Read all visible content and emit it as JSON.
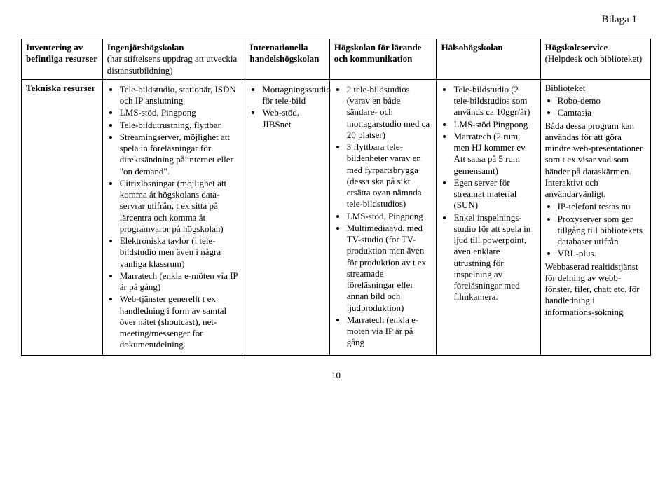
{
  "topRight": "Bilaga 1",
  "pageNumber": "10",
  "headers": {
    "c0a": "Inventering av befintliga resurser",
    "c0b": "Tekniska resurser",
    "c1a": "Ingenjörshögskolan",
    "c1a_sub": "(har stiftelsens uppdrag att utveckla distansutbildning)",
    "c2a": "Internationella handelshögskolan",
    "c3a": "Högskolan för lärande och kommunikation",
    "c4a": "Hälsohögskolan",
    "c5a": "Högskoleservice",
    "c5a_sub": "(Helpdesk och biblioteket)"
  },
  "col1": [
    "Tele-bildstudio, stationär, ISDN och IP anslutning",
    "LMS-stöd, Pingpong",
    "Tele-bildutrustning, flyttbar",
    "Streamingserver, möjlighet att spela in föreläsningar för direktsändning på internet eller \"on demand\".",
    "Citrixlösningar (möjlighet att komma åt högskolans data-servrar utifrån, t ex sitta på lärcentra och komma åt programvaror på högskolan)",
    "Elektroniska tavlor (i tele-bildstudio men även i några vanliga klassrum)",
    "Marratech (enkla e-möten via IP är på gång)",
    "Web-tjänster generellt t ex handledning i form av samtal över nätet (shoutcast), net-meeting/messenger för dokumentdelning."
  ],
  "col2": [
    "Mottagningsstudio för tele-bild",
    "Web-stöd, JIBSnet"
  ],
  "col3": [
    "2 tele-bildstudios (varav en både sändare- och mottagarstudio med ca 20 platser)",
    "3 flyttbara tele-bildenheter varav en med fyrpartsbrygga (dessa ska på sikt ersätta ovan nämnda tele-bildstudios)",
    "LMS-stöd, Pingpong",
    "Multimediaavd. med TV-studio (för TV-produktion men även för produktion av t ex streamade föreläsningar eller annan bild och ljudproduktion)",
    "Marratech (enkla e-möten via IP är på gång"
  ],
  "col4": [
    "Tele-bildstudio (2 tele-bildstudios som används ca 10ggr/år)",
    "LMS-stöd Pingpong",
    "Marratech (2 rum, men HJ kommer ev. Att satsa på 5 rum gemensamt)",
    "Egen server för streamat material (SUN)",
    "Enkel inspelnings-studio för att spela in ljud till powerpoint, även enklare utrustning för inspelning av föreläsningar med filmkamera."
  ],
  "col5_pre": "Biblioteket",
  "col5": [
    "Robo-demo",
    "Camtasia"
  ],
  "col5_post1": "Båda dessa program kan användas för att göra mindre web-presentationer som t ex visar vad som händer på dataskärmen. Interaktivt och användarvänligt.",
  "col5b": [
    "IP-telefoni testas nu",
    "Proxyserver som ger tillgång till bibliotekets databaser utifrån",
    "VRL-plus."
  ],
  "col5_post2": "Webbaserad realtidstjänst för delning av webb-fönster, filer, chatt etc. för handledning i informations-sökning"
}
